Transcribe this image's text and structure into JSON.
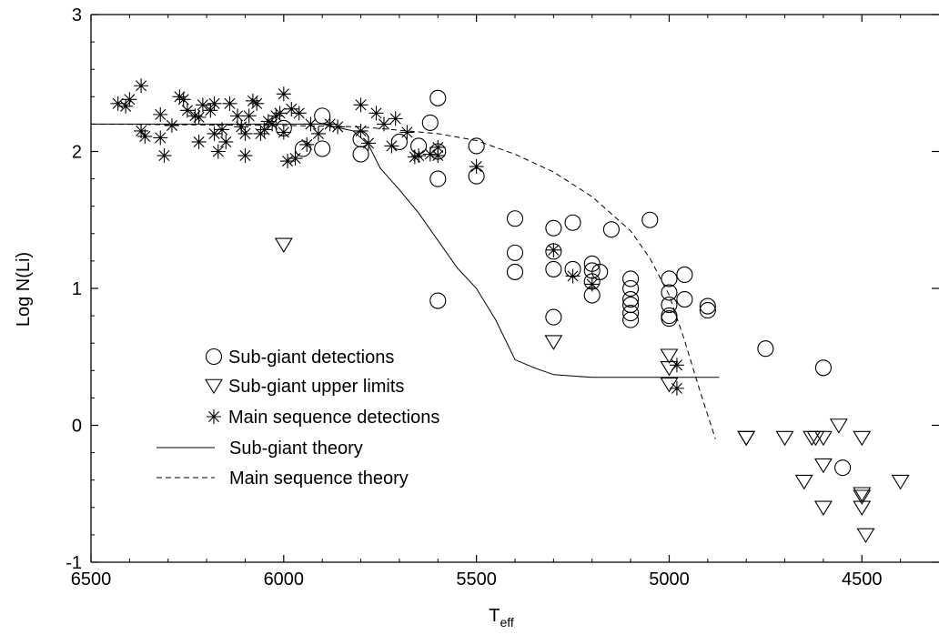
{
  "chart_data": {
    "type": "scatter",
    "title": "",
    "xlabel_main": "T",
    "xlabel_sub": "eff",
    "ylabel": "Log N(Li)",
    "xlim": [
      6500,
      4300
    ],
    "ylim": [
      -1,
      3
    ],
    "xticks": [
      "6500",
      "6000",
      "5500",
      "5000",
      "4500"
    ],
    "xtick_values": [
      6500,
      6000,
      5500,
      5000,
      4500
    ],
    "yticks": [
      "-1",
      "0",
      "1",
      "2",
      "3"
    ],
    "ytick_values": [
      -1,
      0,
      1,
      2,
      3
    ],
    "grid": false,
    "legend_position": "lower-left",
    "series": [
      {
        "name": "Sub-giant detections",
        "kind": "scatter",
        "marker": "circle",
        "points": [
          [
            6000,
            2.17
          ],
          [
            5950,
            2.02
          ],
          [
            5900,
            2.02
          ],
          [
            5900,
            2.26
          ],
          [
            5800,
            2.09
          ],
          [
            5800,
            1.98
          ],
          [
            5700,
            2.07
          ],
          [
            5650,
            2.04
          ],
          [
            5620,
            2.21
          ],
          [
            5600,
            2.39
          ],
          [
            5600,
            2.0
          ],
          [
            5600,
            1.8
          ],
          [
            5600,
            0.91
          ],
          [
            5500,
            2.04
          ],
          [
            5500,
            1.82
          ],
          [
            5400,
            1.51
          ],
          [
            5400,
            1.26
          ],
          [
            5400,
            1.12
          ],
          [
            5300,
            1.44
          ],
          [
            5300,
            1.27
          ],
          [
            5300,
            1.14
          ],
          [
            5300,
            0.79
          ],
          [
            5250,
            1.48
          ],
          [
            5250,
            1.14
          ],
          [
            5200,
            1.18
          ],
          [
            5200,
            1.13
          ],
          [
            5200,
            1.05
          ],
          [
            5200,
            0.95
          ],
          [
            5180,
            1.12
          ],
          [
            5150,
            1.43
          ],
          [
            5100,
            1.07
          ],
          [
            5100,
            1.0
          ],
          [
            5100,
            0.92
          ],
          [
            5100,
            0.88
          ],
          [
            5100,
            0.82
          ],
          [
            5100,
            0.77
          ],
          [
            5050,
            1.5
          ],
          [
            5000,
            1.07
          ],
          [
            5000,
            0.97
          ],
          [
            5000,
            0.88
          ],
          [
            5000,
            0.8
          ],
          [
            5000,
            0.78
          ],
          [
            4960,
            1.1
          ],
          [
            4960,
            0.92
          ],
          [
            4900,
            0.87
          ],
          [
            4900,
            0.84
          ],
          [
            4750,
            0.56
          ],
          [
            4600,
            0.42
          ],
          [
            4550,
            -0.31
          ]
        ]
      },
      {
        "name": "Sub-giant upper limits",
        "kind": "scatter",
        "marker": "triangle-down",
        "points": [
          [
            6000,
            1.32
          ],
          [
            5300,
            0.61
          ],
          [
            5000,
            0.51
          ],
          [
            5000,
            0.42
          ],
          [
            5000,
            0.3
          ],
          [
            4800,
            -0.09
          ],
          [
            4800,
            -0.09
          ],
          [
            4700,
            -0.09
          ],
          [
            4630,
            -0.09
          ],
          [
            4620,
            -0.09
          ],
          [
            4600,
            -0.09
          ],
          [
            4650,
            -0.41
          ],
          [
            4600,
            -0.29
          ],
          [
            4600,
            -0.6
          ],
          [
            4560,
            0.0
          ],
          [
            4500,
            -0.09
          ],
          [
            4500,
            -0.5
          ],
          [
            4500,
            -0.52
          ],
          [
            4500,
            -0.6
          ],
          [
            4490,
            -0.8
          ],
          [
            4400,
            -0.41
          ]
        ]
      },
      {
        "name": "Main sequence detections",
        "kind": "scatter",
        "marker": "asterisk",
        "points": [
          [
            6430,
            2.35
          ],
          [
            6410,
            2.33
          ],
          [
            6400,
            2.38
          ],
          [
            6370,
            2.48
          ],
          [
            6370,
            2.15
          ],
          [
            6360,
            2.11
          ],
          [
            6320,
            2.27
          ],
          [
            6320,
            2.1
          ],
          [
            6310,
            1.97
          ],
          [
            6290,
            2.19
          ],
          [
            6270,
            2.4
          ],
          [
            6260,
            2.38
          ],
          [
            6250,
            2.3
          ],
          [
            6230,
            2.26
          ],
          [
            6220,
            2.25
          ],
          [
            6220,
            2.07
          ],
          [
            6210,
            2.34
          ],
          [
            6190,
            2.3
          ],
          [
            6180,
            2.35
          ],
          [
            6180,
            2.13
          ],
          [
            6170,
            2.0
          ],
          [
            6160,
            2.16
          ],
          [
            6150,
            2.07
          ],
          [
            6140,
            2.35
          ],
          [
            6120,
            2.26
          ],
          [
            6110,
            2.18
          ],
          [
            6100,
            2.13
          ],
          [
            6100,
            1.97
          ],
          [
            6090,
            2.26
          ],
          [
            6080,
            2.37
          ],
          [
            6070,
            2.35
          ],
          [
            6060,
            2.13
          ],
          [
            6050,
            2.16
          ],
          [
            6040,
            2.22
          ],
          [
            6030,
            2.2
          ],
          [
            6020,
            2.26
          ],
          [
            6010,
            2.28
          ],
          [
            6000,
            2.42
          ],
          [
            6000,
            2.14
          ],
          [
            5990,
            1.93
          ],
          [
            5980,
            2.31
          ],
          [
            5970,
            1.95
          ],
          [
            5960,
            2.28
          ],
          [
            5940,
            2.05
          ],
          [
            5930,
            2.2
          ],
          [
            5910,
            2.13
          ],
          [
            5880,
            2.2
          ],
          [
            5860,
            2.18
          ],
          [
            5800,
            2.34
          ],
          [
            5800,
            2.15
          ],
          [
            5780,
            2.06
          ],
          [
            5760,
            2.28
          ],
          [
            5740,
            2.2
          ],
          [
            5720,
            2.04
          ],
          [
            5710,
            2.24
          ],
          [
            5680,
            2.14
          ],
          [
            5660,
            1.96
          ],
          [
            5650,
            1.97
          ],
          [
            5620,
            1.98
          ],
          [
            5600,
            1.97
          ],
          [
            5600,
            2.03
          ],
          [
            5500,
            1.89
          ],
          [
            5300,
            1.28
          ],
          [
            5250,
            1.09
          ],
          [
            5200,
            1.03
          ],
          [
            4980,
            0.44
          ],
          [
            4980,
            0.27
          ]
        ]
      },
      {
        "name": "Sub-giant theory",
        "kind": "line",
        "style": "solid",
        "points": [
          [
            6500,
            2.2
          ],
          [
            6200,
            2.2
          ],
          [
            5900,
            2.2
          ],
          [
            5820,
            2.15
          ],
          [
            5780,
            2.05
          ],
          [
            5750,
            1.88
          ],
          [
            5700,
            1.72
          ],
          [
            5650,
            1.55
          ],
          [
            5600,
            1.35
          ],
          [
            5550,
            1.15
          ],
          [
            5500,
            1.0
          ],
          [
            5450,
            0.77
          ],
          [
            5400,
            0.48
          ],
          [
            5350,
            0.42
          ],
          [
            5300,
            0.37
          ],
          [
            5200,
            0.35
          ],
          [
            5100,
            0.35
          ],
          [
            5000,
            0.35
          ],
          [
            4870,
            0.35
          ]
        ]
      },
      {
        "name": "Main sequence theory",
        "kind": "line",
        "style": "dashed",
        "points": [
          [
            6500,
            2.2
          ],
          [
            6000,
            2.19
          ],
          [
            5800,
            2.18
          ],
          [
            5600,
            2.13
          ],
          [
            5500,
            2.08
          ],
          [
            5400,
            1.98
          ],
          [
            5300,
            1.85
          ],
          [
            5200,
            1.67
          ],
          [
            5100,
            1.42
          ],
          [
            5050,
            1.22
          ],
          [
            5000,
            0.95
          ],
          [
            4960,
            0.62
          ],
          [
            4920,
            0.25
          ],
          [
            4880,
            -0.1
          ]
        ]
      }
    ]
  }
}
